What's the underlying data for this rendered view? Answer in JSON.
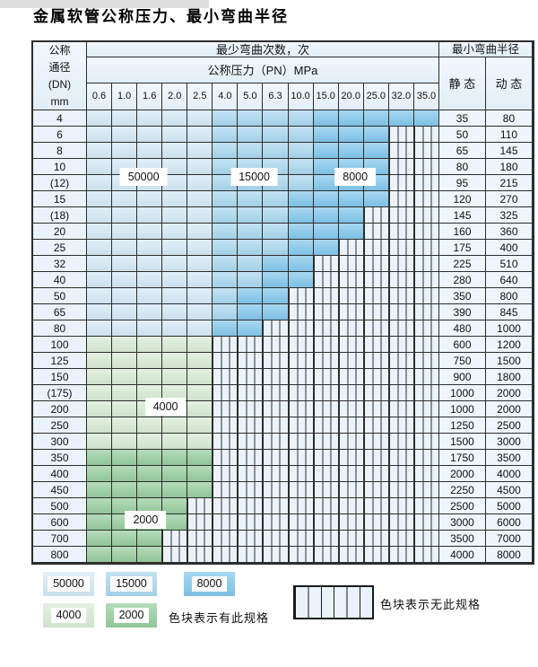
{
  "title": "金属软管公称压力、最小弯曲半径",
  "colors": {
    "c50000": "#d4e9f6",
    "c15000": "#a9d7ef",
    "c8000": "#82c7ec",
    "c4000": "#d8ebd4",
    "c2000": "#96cd9d",
    "no_spec_bg": "#ebf3fa",
    "grid_line": "#2d2d2d",
    "header_bg": "#e2eef8"
  },
  "table": {
    "header": {
      "dn_label": "公称\n通径\n(DN)\nmm",
      "bend_times_label": "最少弯曲次数，次",
      "radius_label": "最小弯曲半径",
      "pressure_label": "公称压力（PN）MPa",
      "static_label": "静 态",
      "dynamic_label": "动 态",
      "pressures": [
        "0.6",
        "1.0",
        "1.6",
        "2.0",
        "2.5",
        "4.0",
        "5.0",
        "6.3",
        "10.0",
        "15.0",
        "20.0",
        "25.0",
        "32.0",
        "35.0"
      ]
    },
    "zone_codes": {
      "a": "50000 cycles",
      "b": "15000 cycles",
      "c": "8000 cycles",
      "d": "4000 cycles",
      "e": "2000 cycles",
      "x": "no specification (striped)"
    },
    "rows": [
      {
        "dn": "4",
        "zones": "aaaaabbbbccccc",
        "static": "35",
        "dynamic": "80"
      },
      {
        "dn": "6",
        "zones": "aaaaabbbbcccxx",
        "static": "50",
        "dynamic": "110"
      },
      {
        "dn": "8",
        "zones": "aaaaabbbbcccxx",
        "static": "65",
        "dynamic": "145"
      },
      {
        "dn": "10",
        "zones": "aaaaabbbbcccxx",
        "static": "80",
        "dynamic": "180"
      },
      {
        "dn": "(12)",
        "zones": "aaaaabbbbcccxx",
        "static": "95",
        "dynamic": "215"
      },
      {
        "dn": "15",
        "zones": "aaaaabbbccccxx",
        "static": "120",
        "dynamic": "270"
      },
      {
        "dn": "(18)",
        "zones": "aaaaabbbcccxxx",
        "static": "145",
        "dynamic": "325"
      },
      {
        "dn": "20",
        "zones": "aaaaabbbcccxxx",
        "static": "160",
        "dynamic": "360"
      },
      {
        "dn": "25",
        "zones": "aaaaabbbccxxxx",
        "static": "175",
        "dynamic": "400"
      },
      {
        "dn": "32",
        "zones": "aaaaabbccxxxxx",
        "static": "225",
        "dynamic": "510"
      },
      {
        "dn": "40",
        "zones": "aaaaabbccxxxxx",
        "static": "280",
        "dynamic": "640"
      },
      {
        "dn": "50",
        "zones": "aaaaabccxxxxxx",
        "static": "350",
        "dynamic": "800"
      },
      {
        "dn": "65",
        "zones": "aaaaabccxxxxxx",
        "static": "390",
        "dynamic": "845"
      },
      {
        "dn": "80",
        "zones": "aaaaaccxxxxxxx",
        "static": "480",
        "dynamic": "1000"
      },
      {
        "dn": "100",
        "zones": "dddddxxxxxxxxx",
        "static": "600",
        "dynamic": "1200"
      },
      {
        "dn": "125",
        "zones": "dddddxxxxxxxxx",
        "static": "750",
        "dynamic": "1500"
      },
      {
        "dn": "150",
        "zones": "dddddxxxxxxxxx",
        "static": "900",
        "dynamic": "1800"
      },
      {
        "dn": "(175)",
        "zones": "dddddxxxxxxxxx",
        "static": "1000",
        "dynamic": "2000"
      },
      {
        "dn": "200",
        "zones": "dddddxxxxxxxxx",
        "static": "1000",
        "dynamic": "2000"
      },
      {
        "dn": "250",
        "zones": "dddddxxxxxxxxx",
        "static": "1250",
        "dynamic": "2500"
      },
      {
        "dn": "300",
        "zones": "dddddxxxxxxxxx",
        "static": "1500",
        "dynamic": "3000"
      },
      {
        "dn": "350",
        "zones": "eeeeexxxxxxxxx",
        "static": "1750",
        "dynamic": "3500"
      },
      {
        "dn": "400",
        "zones": "eeeeexxxxxxxxx",
        "static": "2000",
        "dynamic": "4000"
      },
      {
        "dn": "450",
        "zones": "eeeeexxxxxxxxx",
        "static": "2250",
        "dynamic": "4500"
      },
      {
        "dn": "500",
        "zones": "eeeexxxxxxxxxx",
        "static": "2500",
        "dynamic": "5000"
      },
      {
        "dn": "600",
        "zones": "eeeexxxxxxxxxx",
        "static": "3000",
        "dynamic": "6000"
      },
      {
        "dn": "700",
        "zones": "eeexxxxxxxxxxx",
        "static": "3500",
        "dynamic": "7000"
      },
      {
        "dn": "800",
        "zones": "eeexxxxxxxxxxx",
        "static": "4000",
        "dynamic": "8000"
      }
    ],
    "annotations": [
      {
        "text": "50000",
        "col": 2.2,
        "row": 4.0
      },
      {
        "text": "15000",
        "col": 6.64,
        "row": 4.0
      },
      {
        "text": "8000",
        "col": 10.69,
        "row": 4.0
      },
      {
        "text": "4000",
        "col": 3.08,
        "row": 18.2
      },
      {
        "text": "2000",
        "col": 2.28,
        "row": 25.2
      }
    ]
  },
  "legend": {
    "items": [
      {
        "value": "50000",
        "zone": "a"
      },
      {
        "value": "15000",
        "zone": "b"
      },
      {
        "value": "8000",
        "zone": "c"
      },
      {
        "value": "4000",
        "zone": "d"
      },
      {
        "value": "2000",
        "zone": "e"
      }
    ],
    "has_spec_label": "色块表示有此规格",
    "no_spec_label": "色块表示无此规格"
  }
}
